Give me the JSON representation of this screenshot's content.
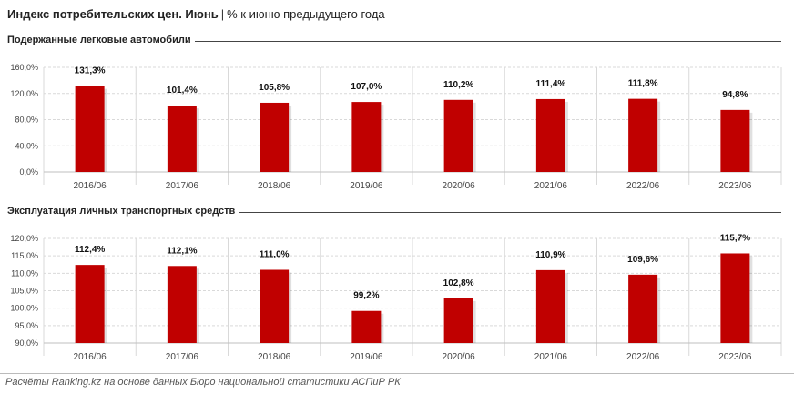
{
  "header": {
    "title": "Индекс потребительских цен. Июнь",
    "separator": "|",
    "subtitle": "% к июню предыдущего года"
  },
  "colors": {
    "bar": "#c00000",
    "grid": "#d9d9d9",
    "divider": "#444444"
  },
  "chart_data": [
    {
      "type": "bar",
      "title": "Подержанные легковые автомобили",
      "categories": [
        "2016/06",
        "2017/06",
        "2018/06",
        "2019/06",
        "2020/06",
        "2021/06",
        "2022/06",
        "2023/06"
      ],
      "values": [
        131.3,
        101.4,
        105.8,
        107.0,
        110.2,
        111.4,
        111.8,
        94.8
      ],
      "labels": [
        "131,3%",
        "101,4%",
        "105,8%",
        "107,0%",
        "110,2%",
        "111,4%",
        "111,8%",
        "94,8%"
      ],
      "yticks": [
        0,
        40,
        80,
        120,
        160
      ],
      "ytick_labels": [
        "0,0%",
        "40,0%",
        "80,0%",
        "120,0%",
        "160,0%"
      ],
      "ylim": [
        0,
        160
      ],
      "grid": true
    },
    {
      "type": "bar",
      "title": "Эксплуатация личных транспортных средств",
      "categories": [
        "2016/06",
        "2017/06",
        "2018/06",
        "2019/06",
        "2020/06",
        "2021/06",
        "2022/06",
        "2023/06"
      ],
      "values": [
        112.4,
        112.1,
        111.0,
        99.2,
        102.8,
        110.9,
        109.6,
        115.7
      ],
      "labels": [
        "112,4%",
        "112,1%",
        "111,0%",
        "99,2%",
        "102,8%",
        "110,9%",
        "109,6%",
        "115,7%"
      ],
      "yticks": [
        90,
        95,
        100,
        105,
        110,
        115,
        120
      ],
      "ytick_labels": [
        "90,0%",
        "95,0%",
        "100,0%",
        "105,0%",
        "110,0%",
        "115,0%",
        "120,0%"
      ],
      "ylim": [
        90,
        120
      ],
      "grid": true
    }
  ],
  "footer": {
    "source": "Расчёты Ranking.kz на основе данных Бюро национальной статистики АСПиР РК"
  }
}
